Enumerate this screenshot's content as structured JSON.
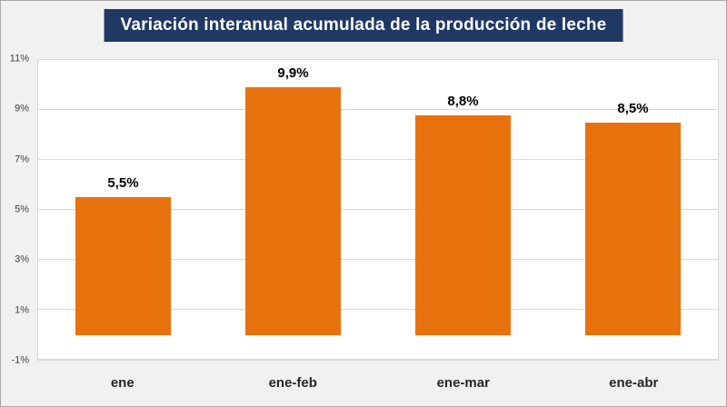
{
  "chart_data": {
    "type": "bar",
    "title": "Variación interanual acumulada de la producción de leche",
    "categories": [
      "ene",
      "ene-feb",
      "ene-mar",
      "ene-abr"
    ],
    "values": [
      5.5,
      9.9,
      8.8,
      8.5
    ],
    "value_labels": [
      "5,5%",
      "9,9%",
      "8,8%",
      "8,5%"
    ],
    "yticks": [
      -1,
      1,
      3,
      5,
      7,
      9,
      11
    ],
    "ytick_labels": [
      "-1%",
      "1%",
      "3%",
      "5%",
      "7%",
      "9%",
      "11%"
    ],
    "ylim": [
      -1,
      11
    ],
    "baseline": 0,
    "bar_color": "#e8720e",
    "title_bg": "#1f3864",
    "grid": true,
    "legend": "none",
    "xlabel": "",
    "ylabel": ""
  }
}
